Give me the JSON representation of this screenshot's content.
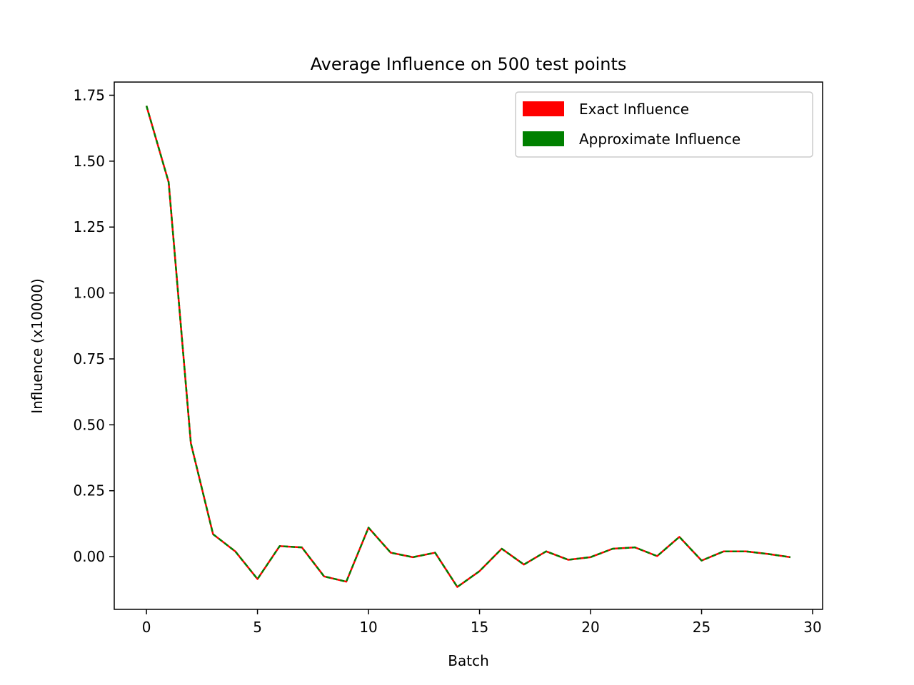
{
  "chart_data": {
    "type": "line",
    "title": "Average Influence on 500 test points",
    "xlabel": "Batch",
    "ylabel": "Influence (x10000)",
    "xlim": [
      -1.45,
      30.45
    ],
    "ylim": [
      -0.2,
      1.8
    ],
    "x_ticks": [
      0,
      5,
      10,
      15,
      20,
      25,
      30
    ],
    "y_ticks": [
      0.0,
      0.25,
      0.5,
      0.75,
      1.0,
      1.25,
      1.5,
      1.75
    ],
    "x_tick_labels": [
      "0",
      "5",
      "10",
      "15",
      "20",
      "25",
      "30"
    ],
    "y_tick_labels": [
      "0.00",
      "0.25",
      "0.50",
      "0.75",
      "1.00",
      "1.25",
      "1.50",
      "1.75"
    ],
    "legend_position": "top-right",
    "x": [
      0,
      1,
      2,
      3,
      4,
      5,
      6,
      7,
      8,
      9,
      10,
      11,
      12,
      13,
      14,
      15,
      16,
      17,
      18,
      19,
      20,
      21,
      22,
      23,
      24,
      25,
      26,
      27,
      28,
      29
    ],
    "series": [
      {
        "name": "Exact Influence",
        "color": "#ff0000",
        "values": [
          1.71,
          1.42,
          0.43,
          0.085,
          0.02,
          -0.085,
          0.04,
          0.035,
          -0.075,
          -0.095,
          0.11,
          0.015,
          -0.002,
          0.015,
          -0.115,
          -0.055,
          0.03,
          -0.03,
          0.02,
          -0.012,
          -0.002,
          0.03,
          0.035,
          0.002,
          0.075,
          -0.015,
          0.02,
          0.02,
          0.01,
          -0.002
        ]
      },
      {
        "name": "Approximate Influence",
        "color": "#008000",
        "values": [
          1.71,
          1.42,
          0.43,
          0.085,
          0.02,
          -0.085,
          0.04,
          0.035,
          -0.075,
          -0.095,
          0.11,
          0.015,
          -0.002,
          0.015,
          -0.115,
          -0.055,
          0.03,
          -0.03,
          0.02,
          -0.012,
          -0.002,
          0.03,
          0.035,
          0.002,
          0.075,
          -0.015,
          0.02,
          0.02,
          0.01,
          -0.002
        ]
      }
    ]
  }
}
